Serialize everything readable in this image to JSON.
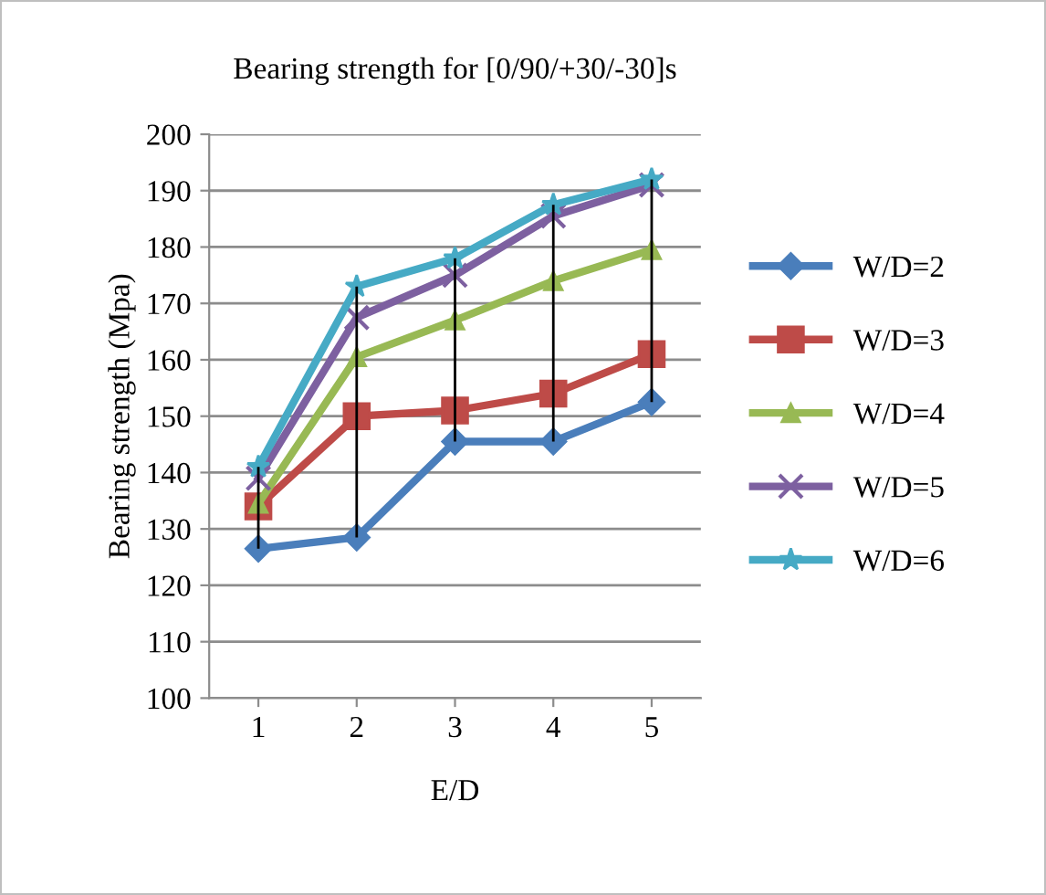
{
  "chart_data": {
    "type": "line",
    "title": "Bearing strength for [0/90/+30/-30]s",
    "xlabel": "E/D",
    "ylabel": "Bearing strength (Mpa)",
    "categories": [
      "1",
      "2",
      "3",
      "4",
      "5"
    ],
    "series": [
      {
        "name": "W/D=2",
        "color": "#4a7ebb",
        "marker": "diamond",
        "values": [
          126.5,
          128.5,
          145.5,
          145.5,
          152.5
        ],
        "errors": [
          [
            126.5,
            141
          ],
          [
            128.5,
            173
          ],
          [
            145.5,
            178
          ],
          [
            145.5,
            187.5
          ],
          [
            152.5,
            192
          ]
        ]
      },
      {
        "name": "W/D=3",
        "color": "#be4b48",
        "marker": "square",
        "values": [
          134,
          150,
          151,
          154,
          161
        ]
      },
      {
        "name": "W/D=4",
        "color": "#98b954",
        "marker": "triangle",
        "values": [
          134.5,
          160.5,
          167,
          174,
          179.5
        ]
      },
      {
        "name": "W/D=5",
        "color": "#7d60a0",
        "marker": "cross",
        "values": [
          139,
          167.5,
          175,
          185.5,
          191
        ]
      },
      {
        "name": "W/D=6",
        "color": "#46aac5",
        "marker": "star",
        "values": [
          141,
          173,
          178,
          187.5,
          192
        ]
      }
    ],
    "ylim": [
      100,
      200
    ],
    "yticks": [
      100,
      110,
      120,
      130,
      140,
      150,
      160,
      170,
      180,
      190,
      200
    ],
    "grid": "y",
    "legend": "right",
    "line_style": "solid"
  }
}
